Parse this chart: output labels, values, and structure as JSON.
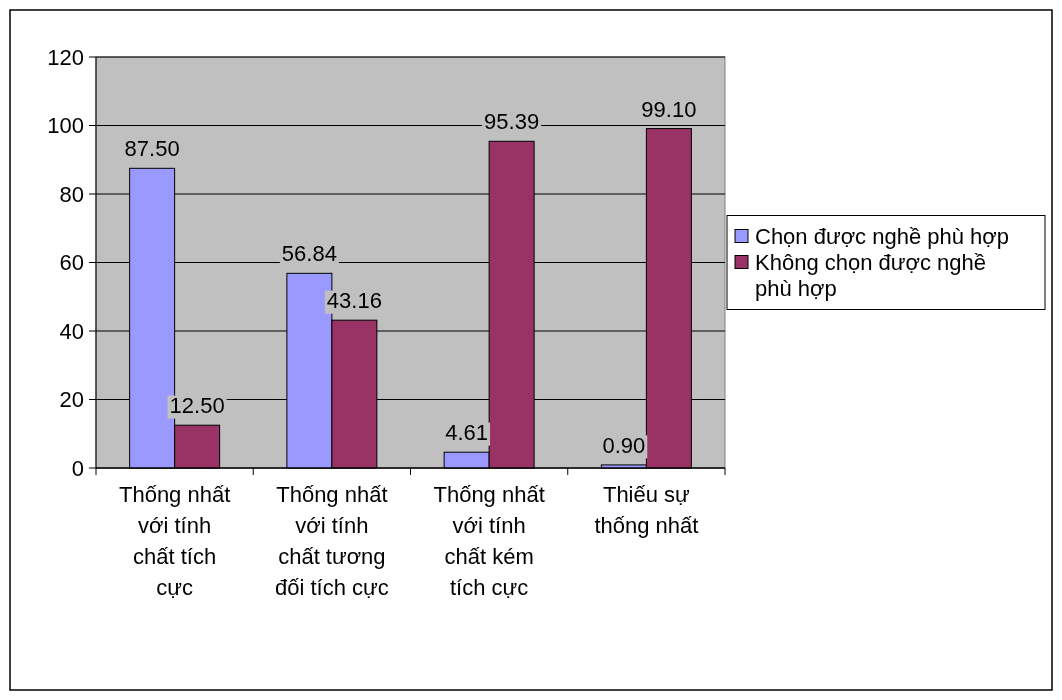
{
  "chart_data": {
    "type": "bar",
    "categories": [
      "Thống nhất với tính chất tích cực",
      "Thống nhất với tính chất tương đối tích cực",
      "Thống nhất với tính chất kém tích cực",
      "Thiếu sự thống nhất"
    ],
    "series": [
      {
        "name": "Chọn được nghề phù hợp",
        "color": "#9999ff",
        "values": [
          87.5,
          56.84,
          4.61,
          0.9
        ],
        "value_labels": [
          "87.50",
          "56.84",
          "4.61",
          "0.90"
        ]
      },
      {
        "name": "Không chọn được nghề phù hợp",
        "color": "#993366",
        "values": [
          12.5,
          43.16,
          95.39,
          99.1
        ],
        "value_labels": [
          "12.50",
          "43.16",
          "95.39",
          "99.10"
        ]
      }
    ],
    "ylim": [
      0,
      120
    ],
    "yticks": [
      0,
      20,
      40,
      60,
      80,
      100,
      120
    ],
    "grid": "y",
    "legend": "right"
  }
}
